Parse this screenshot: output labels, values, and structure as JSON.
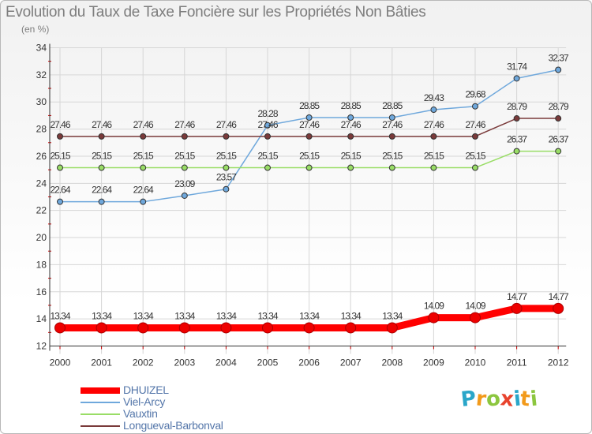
{
  "header": {
    "title": "Evolution du Taux de Taxe Foncière sur les Propriétés Non Bâties",
    "subtitle": "(en %)"
  },
  "logo": {
    "text": "Proxiti",
    "letters": [
      {
        "ch": "P",
        "color": "#2aa6c9"
      },
      {
        "ch": "r",
        "color": "#f29a1b"
      },
      {
        "ch": "o",
        "color": "#8cc63f"
      },
      {
        "ch": "x",
        "color": "#e8432d"
      },
      {
        "ch": "i",
        "color": "#2aa6c9"
      },
      {
        "ch": "t",
        "color": "#f29a1b"
      },
      {
        "ch": "i",
        "color": "#8cc63f"
      }
    ]
  },
  "chart_data": {
    "type": "line",
    "title": "Evolution du Taux de Taxe Foncière sur les Propriétés Non Bâties",
    "ylabel": "(en %)",
    "xlabel": "",
    "ylim": [
      12,
      34
    ],
    "yticks": [
      12,
      14,
      16,
      18,
      20,
      22,
      24,
      26,
      28,
      30,
      32,
      34
    ],
    "grid": true,
    "legend_position": "bottom-left",
    "categories": [
      "2000",
      "2001",
      "2002",
      "2003",
      "2004",
      "2005",
      "2006",
      "2007",
      "2008",
      "2009",
      "2010",
      "2011",
      "2012"
    ],
    "series": [
      {
        "name": "DHUIZEL",
        "color": "#ff0000",
        "values": [
          13.34,
          13.34,
          13.34,
          13.34,
          13.34,
          13.34,
          13.34,
          13.34,
          13.34,
          14.09,
          14.09,
          14.77,
          14.77
        ],
        "labels": [
          "13.34",
          "13.34",
          "13.34",
          "13.34",
          "13.34",
          "13.34",
          "13.34",
          "13.34",
          "13.34",
          "14.09",
          "14.09",
          "14.77",
          "14.77"
        ]
      },
      {
        "name": "Viel-Arcy",
        "color": "#6fa8dc",
        "values": [
          22.64,
          22.64,
          22.64,
          23.09,
          23.57,
          28.28,
          28.85,
          28.85,
          28.85,
          29.43,
          29.68,
          31.74,
          32.37
        ],
        "labels": [
          "22.64",
          "22.64",
          "22.64",
          "23.09",
          "23.57",
          "28.28",
          "28.85",
          "28.85",
          "28.85",
          "29.43",
          "29.68",
          "31.74",
          "32.37"
        ]
      },
      {
        "name": "Vauxtin",
        "color": "#99dd66",
        "values": [
          25.15,
          25.15,
          25.15,
          25.15,
          25.15,
          25.15,
          25.15,
          25.15,
          25.15,
          25.15,
          25.15,
          26.37,
          26.37
        ],
        "labels": [
          "25.15",
          "25.15",
          "25.15",
          "25.15",
          "25.15",
          "25.15",
          "25.15",
          "25.15",
          "25.15",
          "25.15",
          "25.15",
          "26.37",
          "26.37"
        ]
      },
      {
        "name": "Longueval-Barbonval",
        "color": "#7a3a3a",
        "values": [
          27.46,
          27.46,
          27.46,
          27.46,
          27.46,
          27.46,
          27.46,
          27.46,
          27.46,
          27.46,
          27.46,
          28.79,
          28.79
        ],
        "labels": [
          "27.46",
          "27.46",
          "27.46",
          "27.46",
          "27.46",
          "27.46",
          "27.46",
          "27.46",
          "27.46",
          "27.46",
          "27.46",
          "28.79",
          "28.79"
        ]
      }
    ]
  }
}
